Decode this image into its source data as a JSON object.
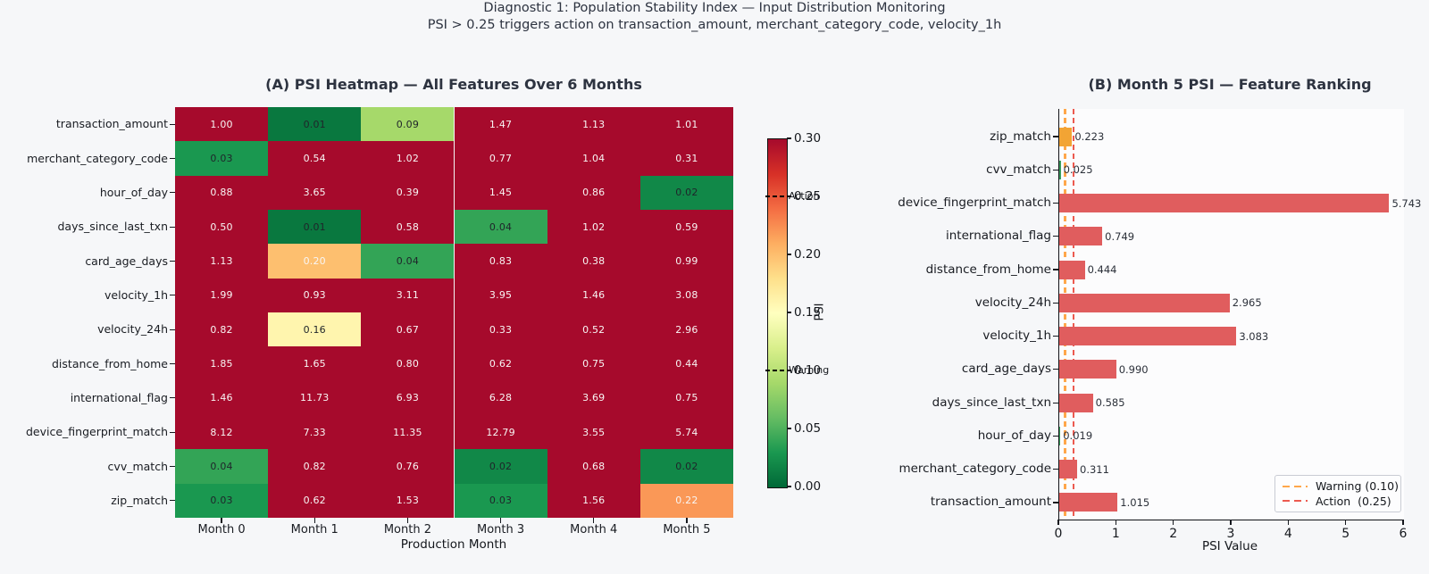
{
  "figure": {
    "suptitle_line1": "Diagnostic 1: Population Stability Index — Input Distribution Monitoring",
    "suptitle_line2": "PSI > 0.25 triggers action on transaction_amount, merchant_category_code, velocity_1h"
  },
  "chart_data": [
    {
      "type": "heatmap",
      "title": "(A) PSI Heatmap — All Features Over 6 Months",
      "xlabel": "Production Month",
      "columns": [
        "Month 0",
        "Month 1",
        "Month 2",
        "Month 3",
        "Month 4",
        "Month 5"
      ],
      "rows": [
        "transaction_amount",
        "merchant_category_code",
        "hour_of_day",
        "days_since_last_txn",
        "card_age_days",
        "velocity_1h",
        "velocity_24h",
        "distance_from_home",
        "international_flag",
        "device_fingerprint_match",
        "cvv_match",
        "zip_match"
      ],
      "values": [
        [
          1.0,
          0.01,
          0.09,
          1.47,
          1.13,
          1.01
        ],
        [
          0.03,
          0.54,
          1.02,
          0.77,
          1.04,
          0.31
        ],
        [
          0.88,
          3.65,
          0.39,
          1.45,
          0.86,
          0.02
        ],
        [
          0.5,
          0.01,
          0.58,
          0.04,
          1.02,
          0.59
        ],
        [
          1.13,
          0.2,
          0.04,
          0.83,
          0.38,
          0.99
        ],
        [
          1.99,
          0.93,
          3.11,
          3.95,
          1.46,
          3.08
        ],
        [
          0.82,
          0.16,
          0.67,
          0.33,
          0.52,
          2.96
        ],
        [
          1.85,
          1.65,
          0.8,
          0.62,
          0.75,
          0.44
        ],
        [
          1.46,
          11.73,
          6.93,
          6.28,
          3.69,
          0.75
        ],
        [
          8.12,
          7.33,
          11.35,
          12.79,
          3.55,
          5.74
        ],
        [
          0.04,
          0.82,
          0.76,
          0.02,
          0.68,
          0.02
        ],
        [
          0.03,
          0.62,
          1.53,
          0.03,
          1.56,
          0.22
        ]
      ],
      "vmin": 0.0,
      "vmax": 0.3,
      "colormap": {
        "name": "RdYlGn reversed",
        "anchors_red_to_green": [
          "#a60a2c",
          "#d73027",
          "#f46d43",
          "#fdae61",
          "#fee08b",
          "#ffffbf",
          "#d9ef8b",
          "#a6d96a",
          "#66bd63",
          "#1a9850",
          "#006837"
        ]
      },
      "colorbar": {
        "label": "PSI",
        "tick_labels": [
          "0.00",
          "0.05",
          "0.10",
          "0.15",
          "0.20",
          "0.25",
          "0.30"
        ],
        "annotations": [
          {
            "label": "Action",
            "value": 0.25
          },
          {
            "label": "Warning",
            "value": 0.1
          }
        ]
      }
    },
    {
      "type": "bar",
      "title": "(B) Month 5 PSI — Feature Ranking",
      "xlabel": "PSI Value",
      "orientation": "horizontal",
      "categories": [
        "zip_match",
        "cvv_match",
        "device_fingerprint_match",
        "international_flag",
        "distance_from_home",
        "velocity_24h",
        "velocity_1h",
        "card_age_days",
        "days_since_last_txn",
        "hour_of_day",
        "merchant_category_code",
        "transaction_amount"
      ],
      "values": [
        0.223,
        0.025,
        5.743,
        0.749,
        0.444,
        2.965,
        3.083,
        0.99,
        0.585,
        0.019,
        0.311,
        1.015
      ],
      "value_labels": [
        "0.223",
        "0.025",
        "5.743",
        "0.749",
        "0.444",
        "2.965",
        "3.083",
        "0.990",
        "0.585",
        "0.019",
        "0.311",
        "1.015"
      ],
      "bar_colors": [
        "#f2a434",
        "#3a9d5c",
        "#e05d5e",
        "#e05d5e",
        "#e05d5e",
        "#e05d5e",
        "#e05d5e",
        "#e05d5e",
        "#e05d5e",
        "#3a9d5c",
        "#e05d5e",
        "#e05d5e"
      ],
      "xlim": [
        0,
        6
      ],
      "xticks": [
        "0",
        "1",
        "2",
        "3",
        "4",
        "5",
        "6"
      ],
      "thresholds": [
        {
          "name": "Warning (0.10)",
          "value": 0.1,
          "color": "#ffa74b"
        },
        {
          "name": "Action  (0.25)",
          "value": 0.25,
          "color": "#ec5a50"
        }
      ],
      "legend_position": "lower right"
    }
  ]
}
